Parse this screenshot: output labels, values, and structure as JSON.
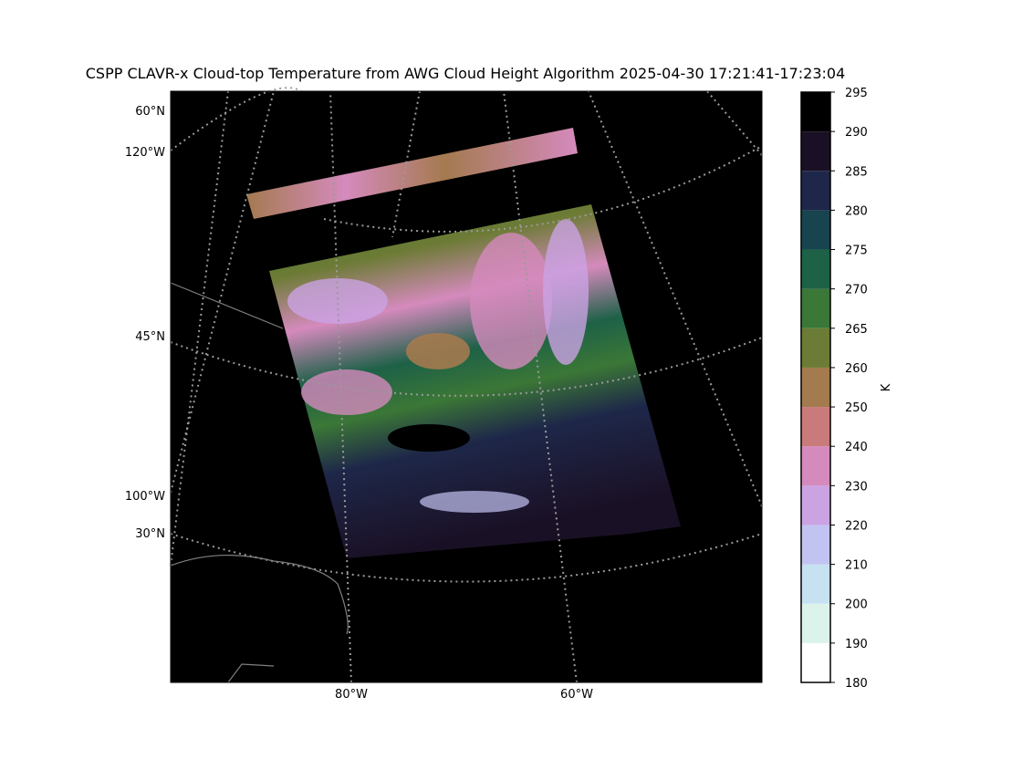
{
  "title": "CSPP CLAVR-x Cloud-top Temperature from AWG Cloud Height Algorithm 2025-04-30 17:21:41-17:23:04",
  "map": {
    "lat_labels": [
      "60°N",
      "45°N",
      "30°N"
    ],
    "lon_left_labels": [
      "120°W",
      "100°W"
    ],
    "lon_bottom_labels": [
      "80°W",
      "60°W"
    ]
  },
  "colorbar": {
    "label": "K",
    "ticks": [
      180,
      190,
      200,
      210,
      220,
      230,
      240,
      250,
      260,
      265,
      270,
      275,
      280,
      285,
      290,
      295
    ],
    "colors": [
      "#ffffff",
      "#dcf3ec",
      "#c6e2f1",
      "#c3c3f2",
      "#cba3e3",
      "#d58abd",
      "#c97a7a",
      "#a47a4f",
      "#6c7b35",
      "#3b7736",
      "#1d6147",
      "#17444f",
      "#1e2749",
      "#1a1025",
      "#000000"
    ]
  }
}
